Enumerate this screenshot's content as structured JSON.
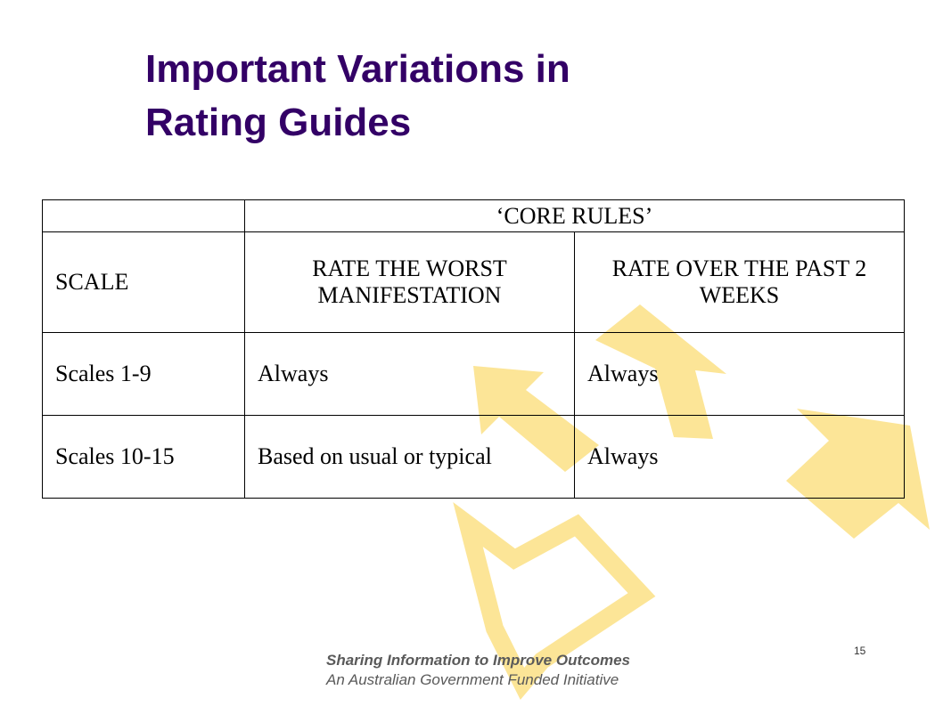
{
  "slide": {
    "title_line1": "Important Variations in",
    "title_line2": "Rating Guides",
    "page_number": "15"
  },
  "table": {
    "header": "‘CORE RULES’",
    "columns": [
      "SCALE",
      "RATE THE WORST MANIFESTATION",
      "RATE OVER THE PAST 2 WEEKS"
    ],
    "rows": [
      [
        "Scales 1-9",
        "Always",
        "Always"
      ],
      [
        "Scales 10-15",
        "Based on usual or typical",
        "Always"
      ]
    ]
  },
  "footer": {
    "line1": "Sharing Information to Improve Outcomes",
    "line2": "An Australian Government Funded Initiative"
  },
  "colors": {
    "title": "#330066",
    "arrows": "#fce597"
  },
  "icons": [
    "arrow-up-left-icon",
    "arrow-up-icon",
    "arrow-up-right-icon",
    "arrow-outline-down-left-icon"
  ]
}
